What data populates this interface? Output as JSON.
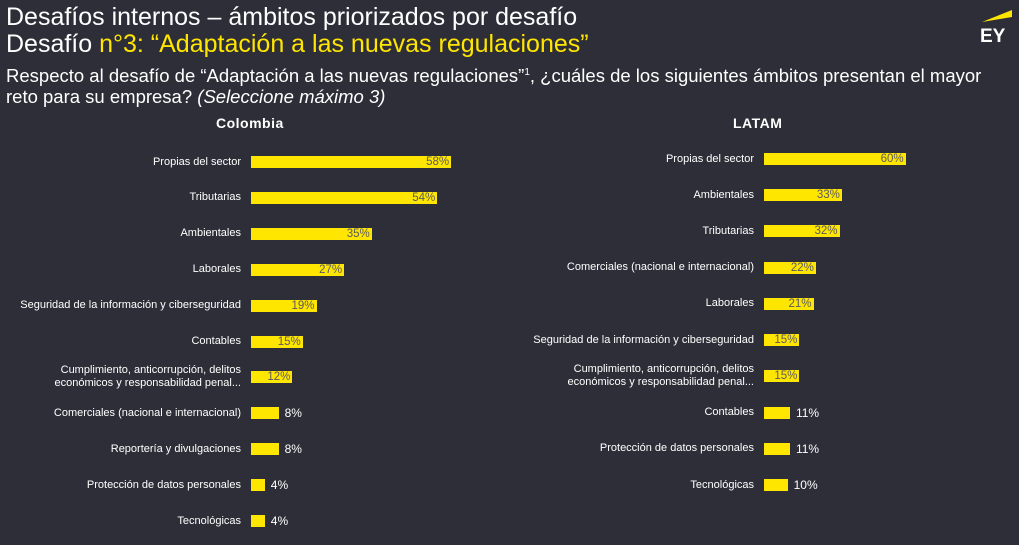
{
  "header": {
    "title_line1": "Desafíos internos – ámbitos priorizados por desafío",
    "title_line2_prefix": "Desafío ",
    "title_line2_accent": "n°3: “Adaptación a las nuevas regulaciones”",
    "question_main": "Respecto al desafío de “Adaptación a las nuevas regulaciones”",
    "question_sup": "1",
    "question_rest": ", ¿cuáles de los siguientes ámbitos presentan el mayor reto para su empresa? ",
    "question_italic": "(Seleccione máximo 3)",
    "logo_text": "EY",
    "accent_color": "#ffe600",
    "background_color": "#2e2e38"
  },
  "chart_data": [
    {
      "type": "bar",
      "orientation": "horizontal",
      "title": "Colombia",
      "categories": [
        "Propias del sector",
        "Tributarias",
        "Ambientales",
        "Laborales",
        "Seguridad de la información y ciberseguridad",
        "Contables",
        "Cumplimiento, anticorrupción, delitos económicos y responsabilidad penal...",
        "Comerciales (nacional e internacional)",
        "Reportería y divulgaciones",
        "Protección de datos personales",
        "Tecnológicas"
      ],
      "values": [
        58,
        54,
        35,
        27,
        19,
        15,
        12,
        8,
        8,
        4,
        4
      ],
      "labels": [
        "58%",
        "54%",
        "35%",
        "27%",
        "19%",
        "15%",
        "12%",
        "8%",
        "8%",
        "4%",
        "4%"
      ],
      "unit": "%",
      "bar_color": "#ffe600"
    },
    {
      "type": "bar",
      "orientation": "horizontal",
      "title": "LATAM",
      "categories": [
        "Propias del sector",
        "Ambientales",
        "Tributarias",
        "Comerciales (nacional e internacional)",
        "Laborales",
        "Seguridad de la información y ciberseguridad",
        "Cumplimiento, anticorrupción, delitos económicos y responsabilidad penal...",
        "Contables",
        "Protección de datos personales",
        "Tecnológicas"
      ],
      "values": [
        60,
        33,
        32,
        22,
        21,
        15,
        15,
        11,
        11,
        10
      ],
      "labels": [
        "60%",
        "33%",
        "32%",
        "22%",
        "21%",
        "15%",
        "15%",
        "11%",
        "11%",
        "10%"
      ],
      "unit": "%",
      "bar_color": "#ffe600"
    }
  ]
}
